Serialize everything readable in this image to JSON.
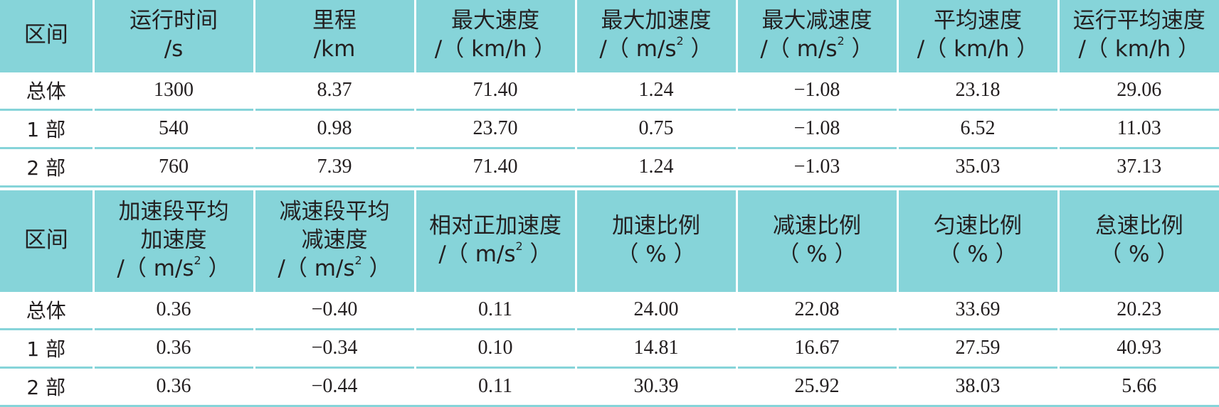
{
  "tables": [
    {
      "headers": [
        {
          "lines": [
            "区间"
          ]
        },
        {
          "lines": [
            "运行时间",
            "/s"
          ]
        },
        {
          "lines": [
            "里程",
            "/km"
          ]
        },
        {
          "lines": [
            "最大速度",
            "/（ km/h ）"
          ]
        },
        {
          "lines": [
            "最大加速度",
            "/（ m/s",
            "2",
            " ）"
          ],
          "sup": true
        },
        {
          "lines": [
            "最大减速度",
            "/（ m/s",
            "2",
            " ）"
          ],
          "sup": true
        },
        {
          "lines": [
            "平均速度",
            "/（ km/h ）"
          ]
        },
        {
          "lines": [
            "运行平均速度",
            "/（ km/h ）"
          ]
        }
      ],
      "rows": [
        [
          "总体",
          "1300",
          "8.37",
          "71.40",
          "1.24",
          "−1.08",
          "23.18",
          "29.06"
        ],
        [
          "1 部",
          "540",
          "0.98",
          "23.70",
          "0.75",
          "−1.08",
          "6.52",
          "11.03"
        ],
        [
          "2 部",
          "760",
          "7.39",
          "71.40",
          "1.24",
          "−1.03",
          "35.03",
          "37.13"
        ]
      ]
    },
    {
      "headers": [
        {
          "lines": [
            "区间"
          ]
        },
        {
          "lines": [
            "加速段平均",
            "加速度",
            "/（ m/s",
            "2",
            " ）"
          ],
          "sup": true
        },
        {
          "lines": [
            "减速段平均",
            "减速度",
            "/（ m/s",
            "2",
            " ）"
          ],
          "sup": true
        },
        {
          "lines": [
            "相对正加速度",
            "/（ m/s",
            "2",
            " ）"
          ],
          "sup": true
        },
        {
          "lines": [
            "加速比例",
            "（ % ）"
          ]
        },
        {
          "lines": [
            "减速比例",
            "（ % ）"
          ]
        },
        {
          "lines": [
            "匀速比例",
            "（ % ）"
          ]
        },
        {
          "lines": [
            "怠速比例",
            "（ % ）"
          ]
        }
      ],
      "rows": [
        [
          "总体",
          "0.36",
          "−0.40",
          "0.11",
          "24.00",
          "22.08",
          "33.69",
          "20.23"
        ],
        [
          "1 部",
          "0.36",
          "−0.34",
          "0.10",
          "14.81",
          "16.67",
          "27.59",
          "40.93"
        ],
        [
          "2 部",
          "0.36",
          "−0.44",
          "0.11",
          "30.39",
          "25.92",
          "38.03",
          "5.66"
        ]
      ]
    }
  ],
  "colors": {
    "header_bg": "#86d4d9",
    "rule": "#86d4d9",
    "text": "#231f20"
  }
}
